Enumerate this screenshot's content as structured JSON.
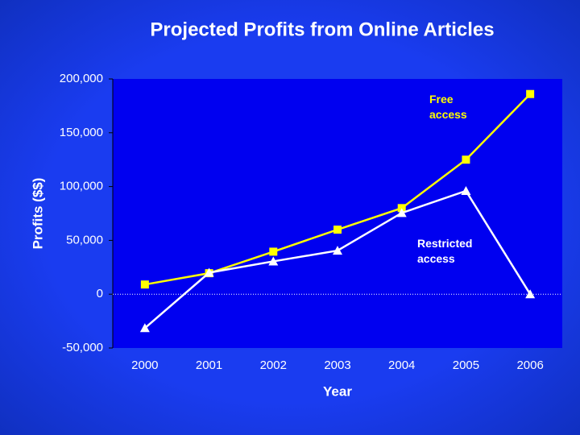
{
  "chart_data": {
    "type": "line",
    "title": "Projected Profits from Online Articles",
    "x_label": "Year",
    "y_label": "Profits ($$)",
    "categories": [
      "2000",
      "2001",
      "2002",
      "2003",
      "2004",
      "2005",
      "2006"
    ],
    "series": [
      {
        "name": "Free access",
        "color": "#ffff00",
        "marker": "square",
        "values": [
          9000,
          19500,
          39500,
          60000,
          80000,
          125000,
          186000
        ]
      },
      {
        "name": "Restricted access",
        "color": "#ffffff",
        "marker": "triangle",
        "values": [
          -31500,
          20000,
          30500,
          40500,
          75500,
          96000,
          0
        ]
      }
    ],
    "ylim": [
      -50000,
      200000
    ],
    "yticks": [
      {
        "value": -50000,
        "label": "-50,000"
      },
      0,
      {
        "value": 50000,
        "label": "50,000"
      },
      {
        "value": 100000,
        "label": "100,000"
      },
      {
        "value": 150000,
        "label": "150,000"
      },
      {
        "value": 200000,
        "label": "200,000"
      }
    ],
    "grid": false
  }
}
